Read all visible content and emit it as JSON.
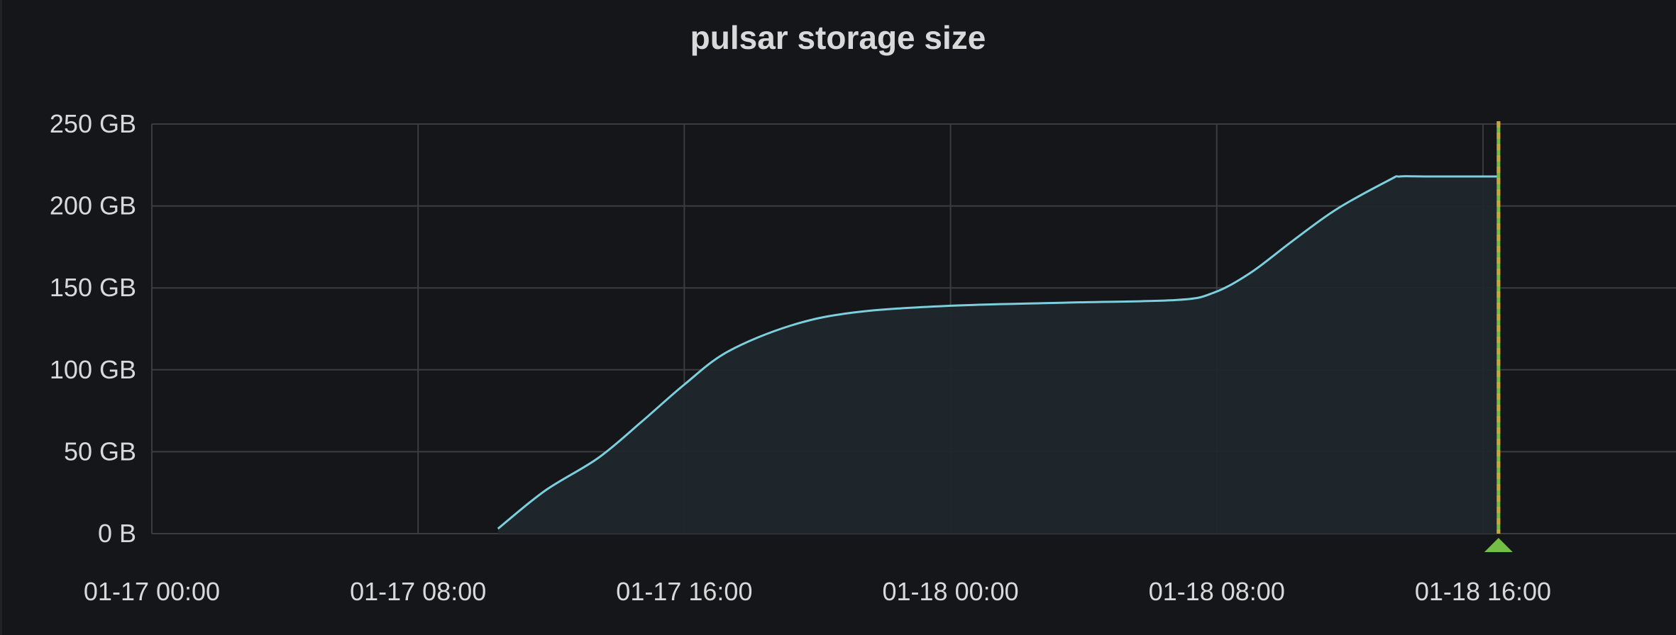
{
  "panel": {
    "title": "pulsar storage size"
  },
  "colors": {
    "background": "#141619",
    "grid": "#3a3c40",
    "series_line": "#7ccfdc",
    "series_fill": "#1f262c",
    "annotation_line": "#c8a83a",
    "annotation_marker": "#73bf45"
  },
  "chart_data": {
    "type": "area",
    "title": "pulsar storage size",
    "xlabel": "",
    "ylabel": "",
    "x_range": [
      "01-17 00:00",
      "01-18 21:48"
    ],
    "ylim": [
      0,
      250
    ],
    "y_unit": "GB",
    "grid": true,
    "y_ticks": [
      "0 B",
      "50 GB",
      "100 GB",
      "150 GB",
      "200 GB",
      "250 GB"
    ],
    "y_tick_values": [
      0,
      50,
      100,
      150,
      200,
      250
    ],
    "x_ticks": [
      "01-17 00:00",
      "01-17 08:00",
      "01-17 16:00",
      "01-18 00:00",
      "01-18 08:00",
      "01-18 16:00"
    ],
    "series": [
      {
        "x": [
          "01-17 10:24",
          "01-17 11:48",
          "01-17 13:24",
          "01-17 14:42",
          "01-17 16:00",
          "01-17 17:18",
          "01-17 19:12",
          "01-17 21:06",
          "01-17 23:54",
          "01-18 03:30",
          "01-18 06:48",
          "01-18 07:54",
          "01-18 09:00",
          "01-18 10:18",
          "01-18 11:36",
          "01-18 13:12",
          "01-18 13:30",
          "01-18 14:16",
          "01-18 16:25"
        ],
        "y": [
          3,
          26,
          46,
          68,
          91,
          111,
          127,
          135,
          139,
          141,
          142.6,
          147,
          159,
          179,
          198,
          216,
          218,
          218,
          218
        ]
      }
    ],
    "annotations": [
      {
        "x": "01-18 16:28",
        "type": "dashed-vertical-line"
      }
    ]
  }
}
